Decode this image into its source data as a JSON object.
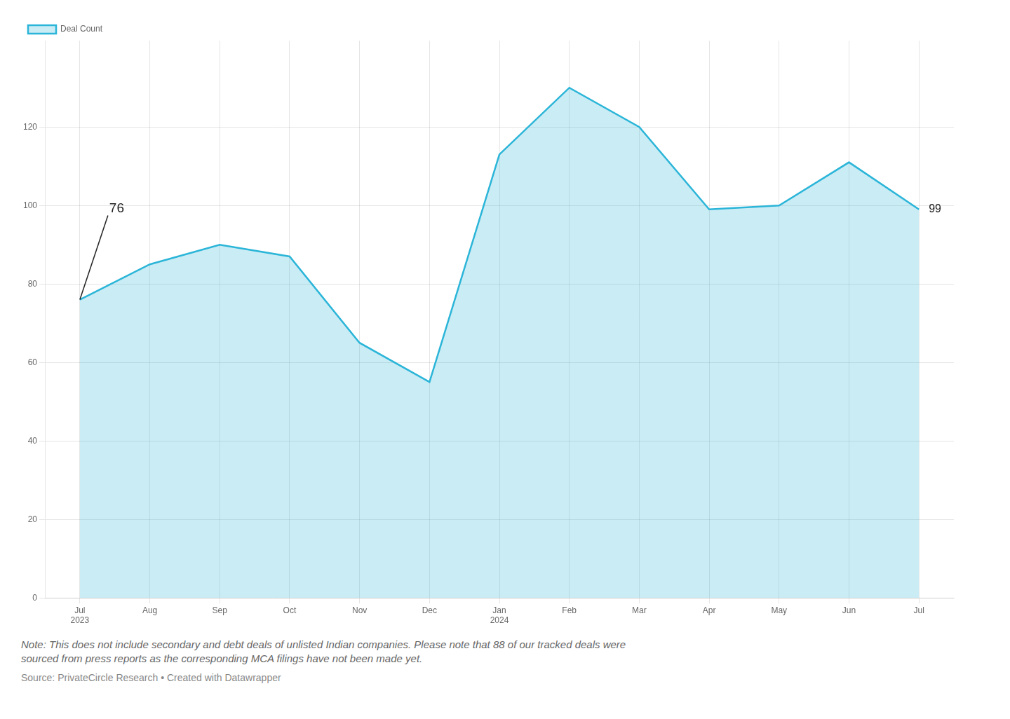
{
  "chart_data": {
    "type": "area",
    "categories": [
      "Jul\n2023",
      "Aug",
      "Sep",
      "Oct",
      "Nov",
      "Dec",
      "Jan\n2024",
      "Feb",
      "Mar",
      "Apr",
      "May",
      "Jun",
      "Jul"
    ],
    "series": [
      {
        "name": "Deal Count",
        "color": "#2BB5D8",
        "values": [
          76,
          85,
          90,
          87,
          65,
          55,
          113,
          130,
          120,
          99,
          100,
          111,
          99
        ]
      }
    ],
    "ylim": [
      0,
      142
    ],
    "yticks": [
      0,
      20,
      40,
      60,
      80,
      100,
      120
    ],
    "grid": true,
    "legend": "upper left",
    "annotations": [
      {
        "text": "76",
        "x": "Jul\n2023",
        "y": 76
      },
      {
        "text": "99",
        "x": "Jul",
        "y": 99
      }
    ],
    "note": "Note: This does not include secondary and debt deals of unlisted Indian companies. Please note that 88 of our tracked deals were\nsourced from press reports as the corresponding MCA filings have not been made yet.",
    "source": "Source: PrivateCircle Research • Created with Datawrapper"
  }
}
